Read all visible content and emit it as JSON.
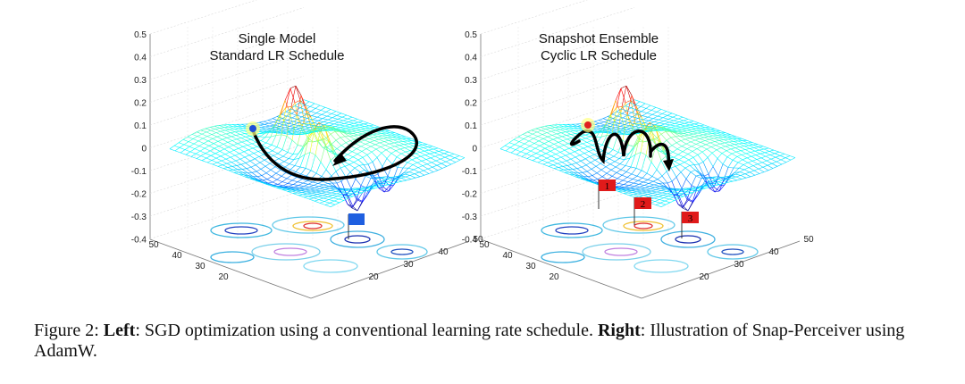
{
  "figure": {
    "left_panel": {
      "title_line1": "Single Model",
      "title_line2": "Standard LR Schedule",
      "z_ticks": [
        "0.5",
        "0.4",
        "0.3",
        "0.2",
        "0.1",
        "0",
        "-0.1",
        "-0.2",
        "-0.3",
        "-0.4"
      ],
      "x_ticks": [
        "50",
        "40",
        "30",
        "20"
      ],
      "y_ticks": [
        "50",
        "40",
        "30",
        "20"
      ],
      "start_marker_color": "#1f4fd8",
      "flag_color": "#1f5fe0"
    },
    "right_panel": {
      "title_line1": "Snapshot Ensemble",
      "title_line2": "Cyclic LR Schedule",
      "z_ticks": [
        "0.5",
        "0.4",
        "0.3",
        "0.2",
        "0.1",
        "0",
        "-0.1",
        "-0.2",
        "-0.3",
        "-0.4"
      ],
      "x_ticks": [
        "50",
        "40",
        "30",
        "20"
      ],
      "y_ticks": [
        "50",
        "40",
        "30",
        "20"
      ],
      "start_marker_color": "#e02020",
      "flag_color": "#e01a1a",
      "flags": [
        "1",
        "2",
        "3"
      ]
    }
  },
  "caption": {
    "prefix": "Figure 2: ",
    "left_label": "Left",
    "left_text": ": SGD optimization using a conventional learning rate schedule. ",
    "right_label": "Right",
    "right_text": ": Illustration of Snap-Perceiver using AdamW."
  }
}
